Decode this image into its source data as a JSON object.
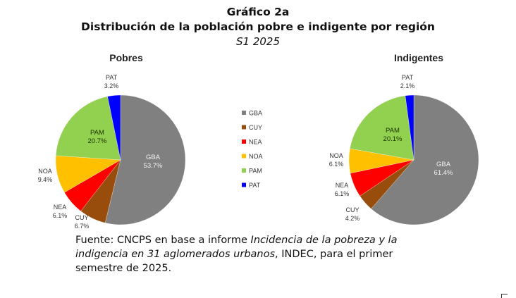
{
  "title": "Gráfico 2a",
  "subtitle": "Distribución de la población pobre e indigente por región",
  "period": "S1 2025",
  "chart_data": [
    {
      "type": "pie",
      "title": "Pobres",
      "categories": [
        "GBA",
        "CUY",
        "NEA",
        "NOA",
        "PAM",
        "PAT"
      ],
      "values": [
        53.7,
        6.7,
        6.1,
        9.4,
        20.7,
        3.2
      ],
      "labels": [
        "53.7%",
        "6.7%",
        "6.1%",
        "9.4%",
        "20.7%",
        "3.2%"
      ],
      "start": "12 o'clock, clockwise"
    },
    {
      "type": "pie",
      "title": "Indigentes",
      "categories": [
        "GBA",
        "CUY",
        "NEA",
        "NOA",
        "PAM",
        "PAT"
      ],
      "values": [
        61.4,
        4.2,
        6.1,
        6.1,
        20.1,
        2.1
      ],
      "labels": [
        "61.4%",
        "4.2%",
        "6.1%",
        "6.1%",
        "20.1%",
        "2.1%"
      ],
      "start": "12 o'clock, clockwise"
    }
  ],
  "legend": {
    "placement": "center",
    "items": [
      {
        "label": "GBA",
        "color": "#808080"
      },
      {
        "label": "CUY",
        "color": "#994d0d"
      },
      {
        "label": "NEA",
        "color": "#ff0000"
      },
      {
        "label": "NOA",
        "color": "#ffc000"
      },
      {
        "label": "PAM",
        "color": "#92d050"
      },
      {
        "label": "PAT",
        "color": "#0000ff"
      }
    ]
  },
  "source": {
    "prefix": "Fuente: CNCPS en base a informe ",
    "italic": "Incidencia de la pobreza y la indigencia en 31 aglomerados urbanos",
    "suffix": ", INDEC, para el primer semestre de 2025."
  }
}
